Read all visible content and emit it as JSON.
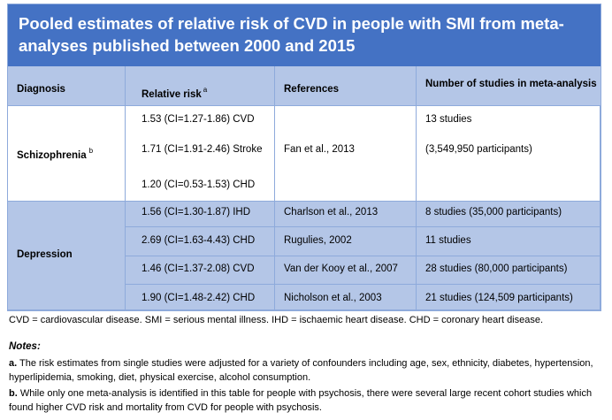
{
  "title": "Pooled estimates of relative risk of CVD in people with SMI from meta-analyses published between 2000 and 2015",
  "title_line1": "Pooled estimates of relative risk of CVD in people with SMI from meta-",
  "title_line2": "analyses published between 2000 and 2015",
  "headers": {
    "diagnosis": "Diagnosis",
    "relative_risk": "Relative risk",
    "relative_risk_note": "a",
    "references": "References",
    "num_studies": "Number of studies in meta-analysis"
  },
  "schizophrenia": {
    "diagnosis": "Schizophrenia",
    "note": "b",
    "risks": [
      "1.53 (CI=1.27-1.86) CVD",
      "1.71 (CI=1.91-2.46) Stroke",
      "1.20 (CI=0.53-1.53) CHD"
    ],
    "reference": "Fan et al., 2013",
    "studies": "13 studies",
    "participants": "(3,549,950 participants)"
  },
  "depression": {
    "diagnosis": "Depression",
    "rows": [
      {
        "risk": "1.56 (CI=1.30-1.87) IHD",
        "reference": "Charlson et al., 2013",
        "studies": "8 studies (35,000 participants)"
      },
      {
        "risk": "2.69 (CI=1.63-4.43) CHD",
        "reference": "Rugulies, 2002",
        "studies": "11 studies"
      },
      {
        "risk": "1.46 (CI=1.37-2.08) CVD",
        "reference": "Van der Kooy et al., 2007",
        "studies": "28 studies (80,000 participants)"
      },
      {
        "risk": "1.90 (CI=1.48-2.42) CHD",
        "reference": "Nicholson et al., 2003",
        "studies": "21 studies (124,509 participants)"
      }
    ]
  },
  "abbreviations": "CVD = cardiovascular disease. SMI = serious mental illness. IHD = ischaemic heart disease. CHD = coronary heart disease.",
  "notes": {
    "title": "Notes:",
    "a_label": "a.",
    "a_text": "The risk estimates from single studies were adjusted for a variety of confounders including age, sex, ethnicity, diabetes, hypertension, hyperlipidemia, smoking, diet, physical exercise, alcohol consumption.",
    "b_label": "b.",
    "b_text": "While only one meta-analysis is identified in this table for people with psychosis, there were several large recent cohort studies which found higher CVD risk and mortality from CVD for people with psychosis."
  }
}
